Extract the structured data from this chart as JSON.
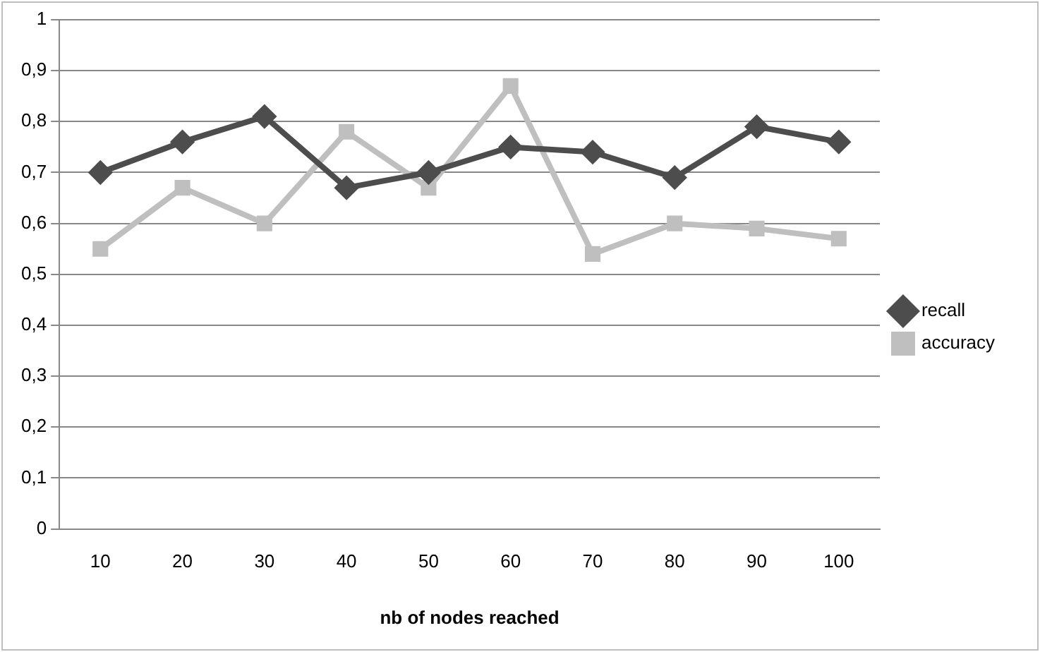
{
  "chart_data": {
    "type": "line",
    "xlabel": "nb of nodes reached",
    "categories": [
      "10",
      "20",
      "30",
      "40",
      "50",
      "60",
      "70",
      "80",
      "90",
      "100"
    ],
    "series": [
      {
        "name": "recall",
        "color": "#4d4d4d",
        "marker": "diamond",
        "values": [
          0.7,
          0.76,
          0.81,
          0.67,
          0.7,
          0.75,
          0.74,
          0.69,
          0.79,
          0.76
        ]
      },
      {
        "name": "accuracy",
        "color": "#bfbfbf",
        "marker": "square",
        "values": [
          0.55,
          0.67,
          0.6,
          0.78,
          0.67,
          0.87,
          0.54,
          0.6,
          0.59,
          0.57
        ]
      }
    ],
    "ylim": [
      0,
      1
    ],
    "yticks": [
      {
        "value": 0,
        "label": "0"
      },
      {
        "value": 0.1,
        "label": "0,1"
      },
      {
        "value": 0.2,
        "label": "0,2"
      },
      {
        "value": 0.3,
        "label": "0,3"
      },
      {
        "value": 0.4,
        "label": "0,4"
      },
      {
        "value": 0.5,
        "label": "0,5"
      },
      {
        "value": 0.6,
        "label": "0,6"
      },
      {
        "value": 0.7,
        "label": "0,7"
      },
      {
        "value": 0.8,
        "label": "0,8"
      },
      {
        "value": 0.9,
        "label": "0,9"
      },
      {
        "value": 1,
        "label": "1"
      }
    ],
    "grid": "y",
    "legend": "right",
    "line_style": "solid"
  }
}
